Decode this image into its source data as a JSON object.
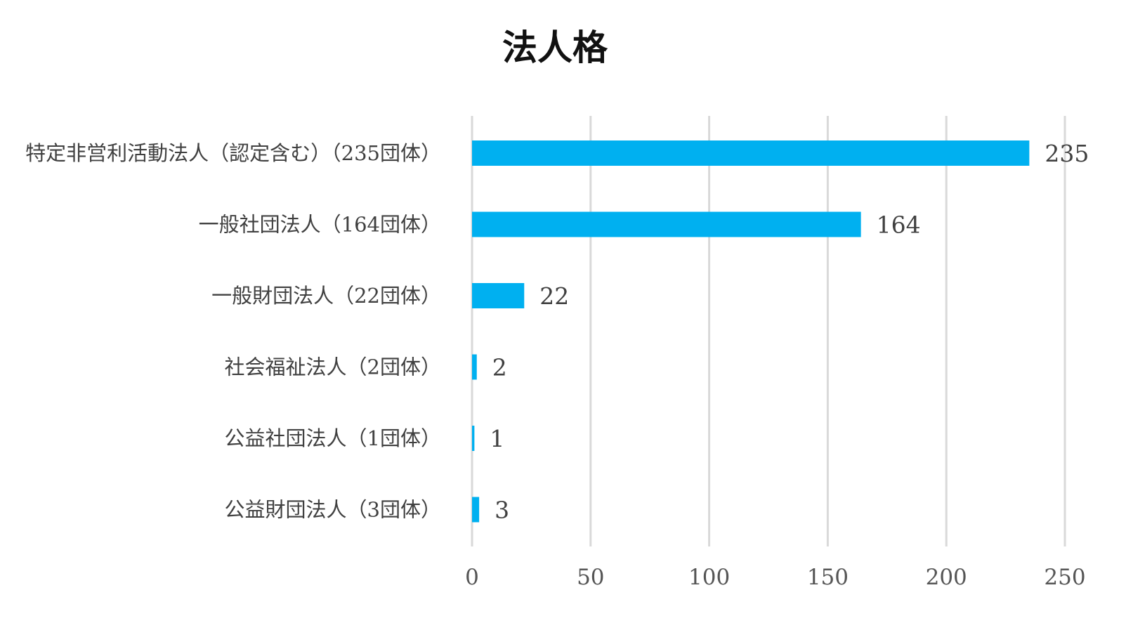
{
  "chart_data": {
    "type": "bar",
    "orientation": "horizontal",
    "title": "法人格",
    "categories": [
      "特定非営利活動法人（認定含む）（235団体）",
      "一般社団法人（164団体）",
      "一般財団法人（22団体）",
      "社会福祉法人（2団体）",
      "公益社団法人（1団体）",
      "公益財団法人（3団体）"
    ],
    "values": [
      235,
      164,
      22,
      2,
      1,
      3
    ],
    "data_labels": [
      "235",
      "164",
      "22",
      "2",
      "1",
      "3"
    ],
    "xlim": [
      0,
      250
    ],
    "x_ticks": [
      0,
      50,
      100,
      150,
      200,
      250
    ],
    "x_tick_labels": [
      "0",
      "50",
      "100",
      "150",
      "200",
      "250"
    ],
    "grid": "vertical",
    "legend": "none",
    "bar_color": "#00B0F0",
    "grid_color": "#D9D9D9"
  }
}
